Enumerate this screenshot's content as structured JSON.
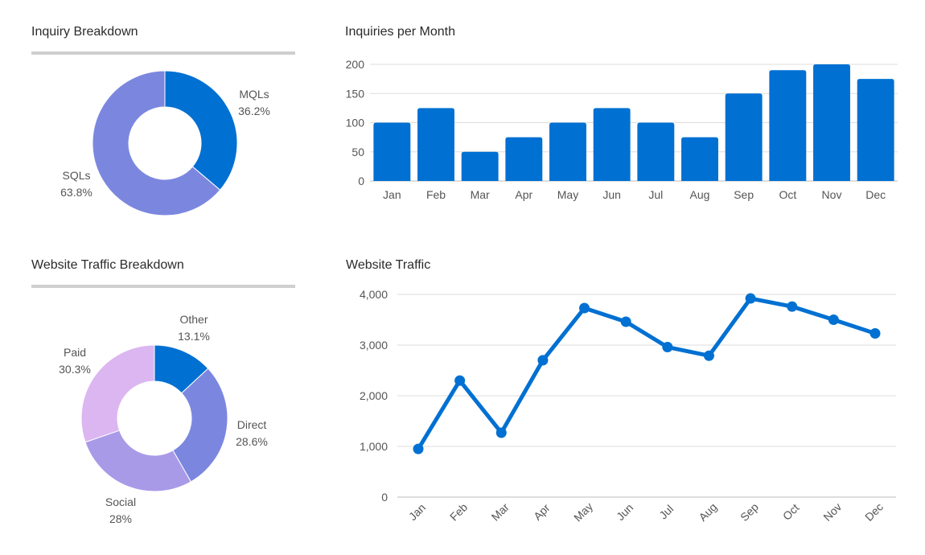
{
  "colors": {
    "primary": "#0070d2",
    "slate_blue": "#7b87df",
    "lavender": "#a99ae8",
    "lilac": "#dcb6f0",
    "grid": "#dddddd"
  },
  "chart_data": [
    {
      "id": "inquiry_breakdown",
      "type": "pie",
      "donut": true,
      "title": "Inquiry Breakdown",
      "slices": [
        {
          "label": "MQLs",
          "value": 36.2,
          "value_text": "36.2%",
          "color": "#0070d2"
        },
        {
          "label": "SQLs",
          "value": 63.8,
          "value_text": "63.8%",
          "color": "#7b87df"
        }
      ]
    },
    {
      "id": "inquiries_per_month",
      "type": "bar",
      "title": "Inquiries per Month",
      "categories": [
        "Jan",
        "Feb",
        "Mar",
        "Apr",
        "May",
        "Jun",
        "Jul",
        "Aug",
        "Sep",
        "Oct",
        "Nov",
        "Dec"
      ],
      "values": [
        100,
        125,
        50,
        75,
        100,
        125,
        100,
        75,
        150,
        190,
        200,
        175
      ],
      "ylim": [
        0,
        200
      ],
      "yticks": [
        "0",
        "50",
        "100",
        "150",
        "200"
      ],
      "grid": true,
      "color": "#0070d2"
    },
    {
      "id": "website_traffic_breakdown",
      "type": "pie",
      "donut": true,
      "title": "Website Traffic Breakdown",
      "slices": [
        {
          "label": "Other",
          "value": 13.1,
          "value_text": "13.1%",
          "color": "#0070d2"
        },
        {
          "label": "Direct",
          "value": 28.6,
          "value_text": "28.6%",
          "color": "#7b87df"
        },
        {
          "label": "Social",
          "value": 28,
          "value_text": "28%",
          "color": "#a99ae8"
        },
        {
          "label": "Paid",
          "value": 30.3,
          "value_text": "30.3%",
          "color": "#dcb6f0"
        }
      ]
    },
    {
      "id": "website_traffic",
      "type": "line",
      "title": "Website Traffic",
      "categories": [
        "Jan",
        "Feb",
        "Mar",
        "Apr",
        "May",
        "Jun",
        "Jul",
        "Aug",
        "Sep",
        "Oct",
        "Nov",
        "Dec"
      ],
      "values": [
        950,
        2300,
        1270,
        2700,
        3730,
        3460,
        2960,
        2790,
        3920,
        3760,
        3500,
        3230
      ],
      "ylim": [
        0,
        4000
      ],
      "yticks": [
        "0",
        "1,000",
        "2,000",
        "3,000",
        "4,000"
      ],
      "grid": true,
      "color": "#0070d2"
    }
  ]
}
